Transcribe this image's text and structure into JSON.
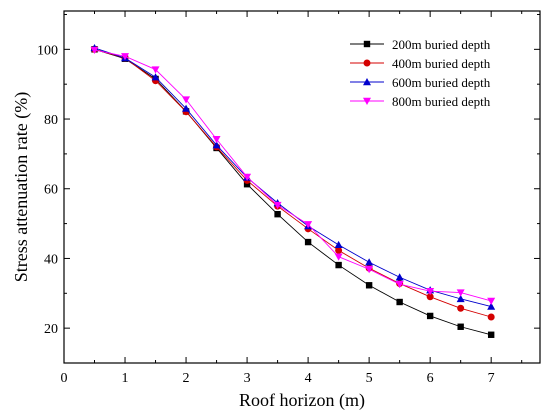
{
  "chart_data": {
    "type": "line",
    "title": "",
    "xlabel": "Roof horizon (m)",
    "ylabel": "Stress attenuation rate (%)",
    "xlim": [
      0,
      7.8
    ],
    "ylim": [
      10,
      111
    ],
    "xticks": [
      0,
      1,
      2,
      3,
      4,
      5,
      6,
      7
    ],
    "yticks": [
      20,
      40,
      60,
      80,
      100
    ],
    "grid": false,
    "legend_position": "top-right",
    "x": [
      0.5,
      1.0,
      1.5,
      2.0,
      2.5,
      3.0,
      3.5,
      4.0,
      4.5,
      5.0,
      5.5,
      6.0,
      6.5,
      7.0
    ],
    "series": [
      {
        "name": "200m buried depth",
        "color": "#000000",
        "marker": "square",
        "values": [
          100.0,
          97.3,
          91.5,
          82.2,
          71.7,
          61.3,
          52.7,
          44.7,
          38.1,
          32.3,
          27.5,
          23.5,
          20.4,
          18.1
        ]
      },
      {
        "name": "400m buried depth",
        "color": "#d40000",
        "marker": "circle",
        "values": [
          100.0,
          97.5,
          91.0,
          82.1,
          72.0,
          62.4,
          55.0,
          48.5,
          42.3,
          37.2,
          32.8,
          29.0,
          25.7,
          23.2
        ]
      },
      {
        "name": "600m buried depth",
        "color": "#0000cc",
        "marker": "triangle-up",
        "values": [
          100.4,
          97.5,
          92.0,
          83.0,
          72.5,
          63.2,
          55.9,
          49.3,
          43.9,
          38.9,
          34.6,
          30.9,
          28.4,
          26.2
        ]
      },
      {
        "name": "800m buried depth",
        "color": "#ff00ff",
        "marker": "triangle-down",
        "values": [
          99.8,
          98.0,
          94.2,
          85.6,
          74.2,
          63.4,
          55.3,
          49.8,
          40.5,
          36.9,
          32.6,
          30.6,
          30.2,
          27.8
        ]
      }
    ]
  }
}
